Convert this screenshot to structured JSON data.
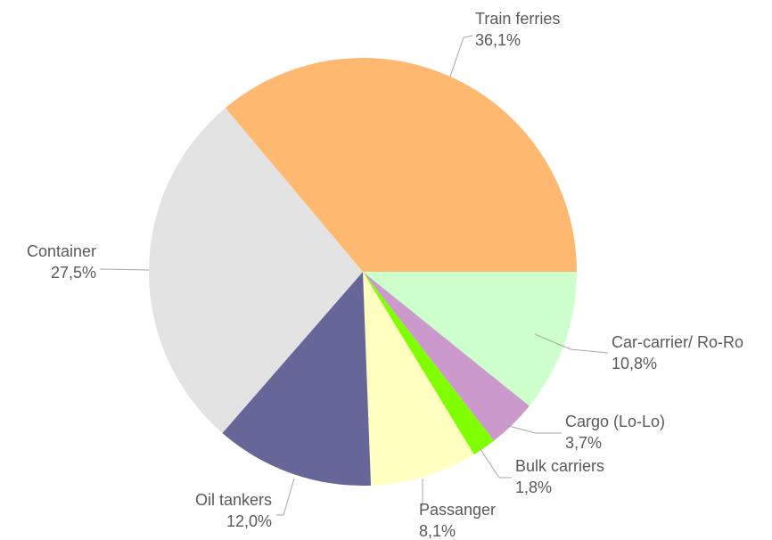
{
  "chart_data": {
    "type": "pie",
    "categories": [
      "Car-carrier/ Ro-Ro",
      "Cargo (Lo-Lo)",
      "Bulk carriers",
      "Passanger",
      "Oil tankers",
      "Container",
      "Train ferries"
    ],
    "values": [
      10.8,
      3.7,
      1.8,
      8.1,
      12.0,
      27.5,
      36.1
    ],
    "value_labels": [
      "10,8%",
      "3,7%",
      "1,8%",
      "8,1%",
      "12,0%",
      "27,5%",
      "36,1%"
    ],
    "colors": [
      "#CCFFCC",
      "#CC99CC",
      "#80FF00",
      "#FFFFC0",
      "#666699",
      "#E3E3E3",
      "#FFB870"
    ]
  }
}
